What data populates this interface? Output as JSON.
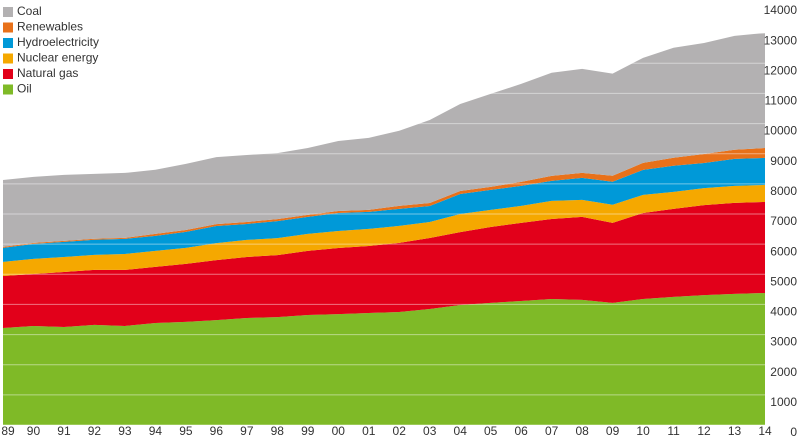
{
  "chart_data": {
    "type": "stacked-area",
    "categories": [
      "89",
      "90",
      "91",
      "92",
      "93",
      "94",
      "95",
      "96",
      "97",
      "98",
      "99",
      "00",
      "01",
      "02",
      "03",
      "04",
      "05",
      "06",
      "07",
      "08",
      "09",
      "10",
      "11",
      "12",
      "13",
      "14"
    ],
    "series": [
      {
        "name": "Coal",
        "color": "#b3b1b2",
        "values": [
          2220,
          2190,
          2190,
          2155,
          2155,
          2125,
          2190,
          2220,
          2220,
          2190,
          2220,
          2320,
          2390,
          2490,
          2755,
          2885,
          3085,
          3250,
          3420,
          3450,
          3385,
          3485,
          3650,
          3685,
          3780,
          3815
        ]
      },
      {
        "name": "Renewables",
        "color": "#e8711a",
        "values": [
          33,
          33,
          33,
          33,
          33,
          66,
          66,
          66,
          66,
          66,
          66,
          66,
          66,
          100,
          100,
          100,
          100,
          130,
          165,
          165,
          200,
          230,
          265,
          300,
          300,
          330
        ]
      },
      {
        "name": "Hydroelectricity",
        "color": "#0099d8",
        "values": [
          465,
          500,
          500,
          500,
          500,
          500,
          530,
          565,
          530,
          565,
          565,
          600,
          565,
          565,
          530,
          665,
          665,
          665,
          665,
          730,
          765,
          830,
          865,
          830,
          895,
          895
        ]
      },
      {
        "name": "Nuclear energy",
        "color": "#f5a800",
        "values": [
          465,
          500,
          500,
          500,
          530,
          530,
          530,
          565,
          565,
          565,
          565,
          565,
          565,
          565,
          530,
          600,
          565,
          565,
          600,
          565,
          600,
          600,
          565,
          565,
          565,
          565
        ]
      },
      {
        "name": "Natural gas",
        "color": "#e2001a",
        "values": [
          1725,
          1725,
          1825,
          1825,
          1860,
          1860,
          1925,
          1990,
          2025,
          2055,
          2125,
          2190,
          2225,
          2290,
          2355,
          2420,
          2520,
          2590,
          2655,
          2755,
          2655,
          2855,
          2920,
          2985,
          3020,
          3020
        ]
      },
      {
        "name": "Oil",
        "color": "#7fba27",
        "values": [
          3220,
          3285,
          3250,
          3320,
          3285,
          3385,
          3420,
          3480,
          3550,
          3580,
          3650,
          3680,
          3715,
          3750,
          3850,
          3980,
          4050,
          4115,
          4180,
          4150,
          4050,
          4180,
          4250,
          4310,
          4350,
          4380
        ]
      }
    ],
    "ylim": [
      0,
      14000
    ],
    "yticks": [
      0,
      1000,
      2000,
      3000,
      4000,
      5000,
      6000,
      7000,
      8000,
      9000,
      10000,
      11000,
      12000,
      13000,
      14000
    ],
    "grid": true,
    "legend": "top-left"
  }
}
